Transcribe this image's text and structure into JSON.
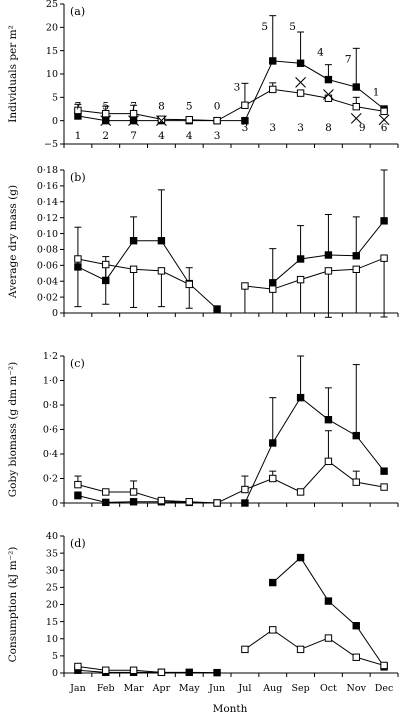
{
  "months": [
    "Jan",
    "Feb",
    "Mar",
    "Apr",
    "May",
    "Jun",
    "Jul",
    "Aug",
    "Sep",
    "Oct",
    "Nov",
    "Dec"
  ],
  "xlabel": "Month",
  "chart_data": [
    {
      "type": "line",
      "panel_label": "(a)",
      "ylabel": "Individuals per m²",
      "ylim": [
        -5,
        25
      ],
      "yticks": [
        -5,
        0,
        5,
        10,
        15,
        20,
        25
      ],
      "tick_labels": [
        "−5",
        "0",
        "5",
        "10",
        "15",
        "20",
        "25"
      ],
      "series": [
        {
          "marker": "filled-square",
          "values": [
            1.0,
            0,
            0,
            0,
            0,
            0,
            0,
            12.8,
            12.3,
            8.8,
            7.2,
            2.5
          ],
          "err": [
            1.5,
            0,
            0,
            0,
            0,
            0,
            0,
            9.7,
            6.7,
            3.2,
            8.3,
            0
          ]
        },
        {
          "marker": "open-square",
          "values": [
            2.2,
            1.5,
            1.5,
            0.3,
            0.2,
            0,
            3.3,
            6.7,
            5.9,
            4.8,
            3.0,
            2.0
          ],
          "err": [
            1.3,
            1.6,
            1.8,
            0.6,
            0.5,
            0,
            4.7,
            1.4,
            0,
            0,
            2.0,
            0
          ]
        },
        {
          "marker": "cross",
          "values": [
            null,
            0,
            0,
            0,
            null,
            null,
            null,
            null,
            8.2,
            5.6,
            0.5,
            0.2
          ]
        }
      ],
      "annotations_above": [
        "7",
        "5",
        "7",
        "8",
        "5",
        "0",
        "3",
        "5",
        "5",
        "4",
        "7",
        "1"
      ],
      "annotations_below": [
        "1",
        "2",
        "7",
        "4",
        "4",
        "3",
        "3",
        "3",
        "3",
        "8",
        "9",
        "6"
      ]
    },
    {
      "type": "line",
      "panel_label": "(b)",
      "ylabel": "Average dry mass (g)",
      "ylim": [
        0,
        0.18
      ],
      "yticks": [
        0,
        0.02,
        0.04,
        0.06,
        0.08,
        0.1,
        0.12,
        0.14,
        0.16,
        0.18
      ],
      "tick_labels": [
        "0",
        "0·02",
        "0·04",
        "0·06",
        "0·08",
        "0·10",
        "0·12",
        "0·14",
        "0·16",
        "0·18"
      ],
      "series": [
        {
          "marker": "filled-square",
          "values": [
            0.058,
            0.041,
            0.091,
            0.091,
            0.037,
            0.005,
            null,
            0.038,
            0.068,
            0.073,
            0.072,
            0.116
          ],
          "err": [
            0.05,
            0.03,
            0.03,
            0.064,
            0.02,
            0,
            null,
            0.043,
            0.042,
            0.051,
            0.049,
            0.067
          ]
        },
        {
          "marker": "open-square",
          "values": [
            0.068,
            0.061,
            0.055,
            0.053,
            0.036,
            null,
            0.034,
            0.03,
            0.042,
            0.053,
            0.055,
            0.069
          ],
          "err": [
            0,
            0,
            0,
            0,
            0,
            null,
            0,
            0,
            0,
            0,
            0,
            0
          ],
          "err_low": [
            0.06,
            0.05,
            0.048,
            0.045,
            0.03,
            null,
            0.034,
            0.03,
            0.042,
            0.062,
            0.055,
            0.074
          ]
        }
      ]
    },
    {
      "type": "line",
      "panel_label": "(c)",
      "ylabel": "Goby biomass (g dm m⁻²)",
      "ylim": [
        0,
        1.2
      ],
      "yticks": [
        0,
        0.2,
        0.4,
        0.6,
        0.8,
        1.0,
        1.2
      ],
      "tick_labels": [
        "0",
        "0·2",
        "0·4",
        "0·6",
        "0·8",
        "1·0",
        "1·2"
      ],
      "series": [
        {
          "marker": "filled-square",
          "values": [
            0.06,
            0.005,
            0.01,
            0.01,
            0.005,
            0,
            0,
            0.49,
            0.86,
            0.68,
            0.55,
            0.26
          ],
          "err": [
            0.03,
            0,
            0,
            0,
            0,
            0,
            0,
            0.37,
            0.37,
            0.26,
            0.58,
            0
          ]
        },
        {
          "marker": "open-square",
          "values": [
            0.15,
            0.09,
            0.09,
            0.02,
            0.01,
            0,
            0.11,
            0.2,
            0.09,
            0.34,
            0.17,
            0.13
          ],
          "err": [
            0.07,
            0,
            0.09,
            0,
            0,
            0,
            0.11,
            0.06,
            0,
            0.25,
            0.09,
            0
          ]
        }
      ]
    },
    {
      "type": "line",
      "panel_label": "(d)",
      "ylabel": "Consumption (kJ m⁻²)",
      "ylim": [
        0,
        40
      ],
      "yticks": [
        0,
        5,
        10,
        15,
        20,
        25,
        30,
        35,
        40
      ],
      "tick_labels": [
        "0",
        "5",
        "10",
        "15",
        "20",
        "25",
        "30",
        "35",
        "40"
      ],
      "series": [
        {
          "marker": "filled-square",
          "values": [
            0.8,
            0.2,
            0.2,
            0.2,
            0.2,
            0.1,
            null,
            26.4,
            33.7,
            21.0,
            13.8,
            1.8
          ]
        },
        {
          "marker": "open-square",
          "values": [
            1.9,
            0.8,
            0.8,
            0.2,
            null,
            null,
            6.9,
            12.6,
            6.9,
            10.2,
            4.6,
            2.2
          ]
        }
      ]
    }
  ]
}
